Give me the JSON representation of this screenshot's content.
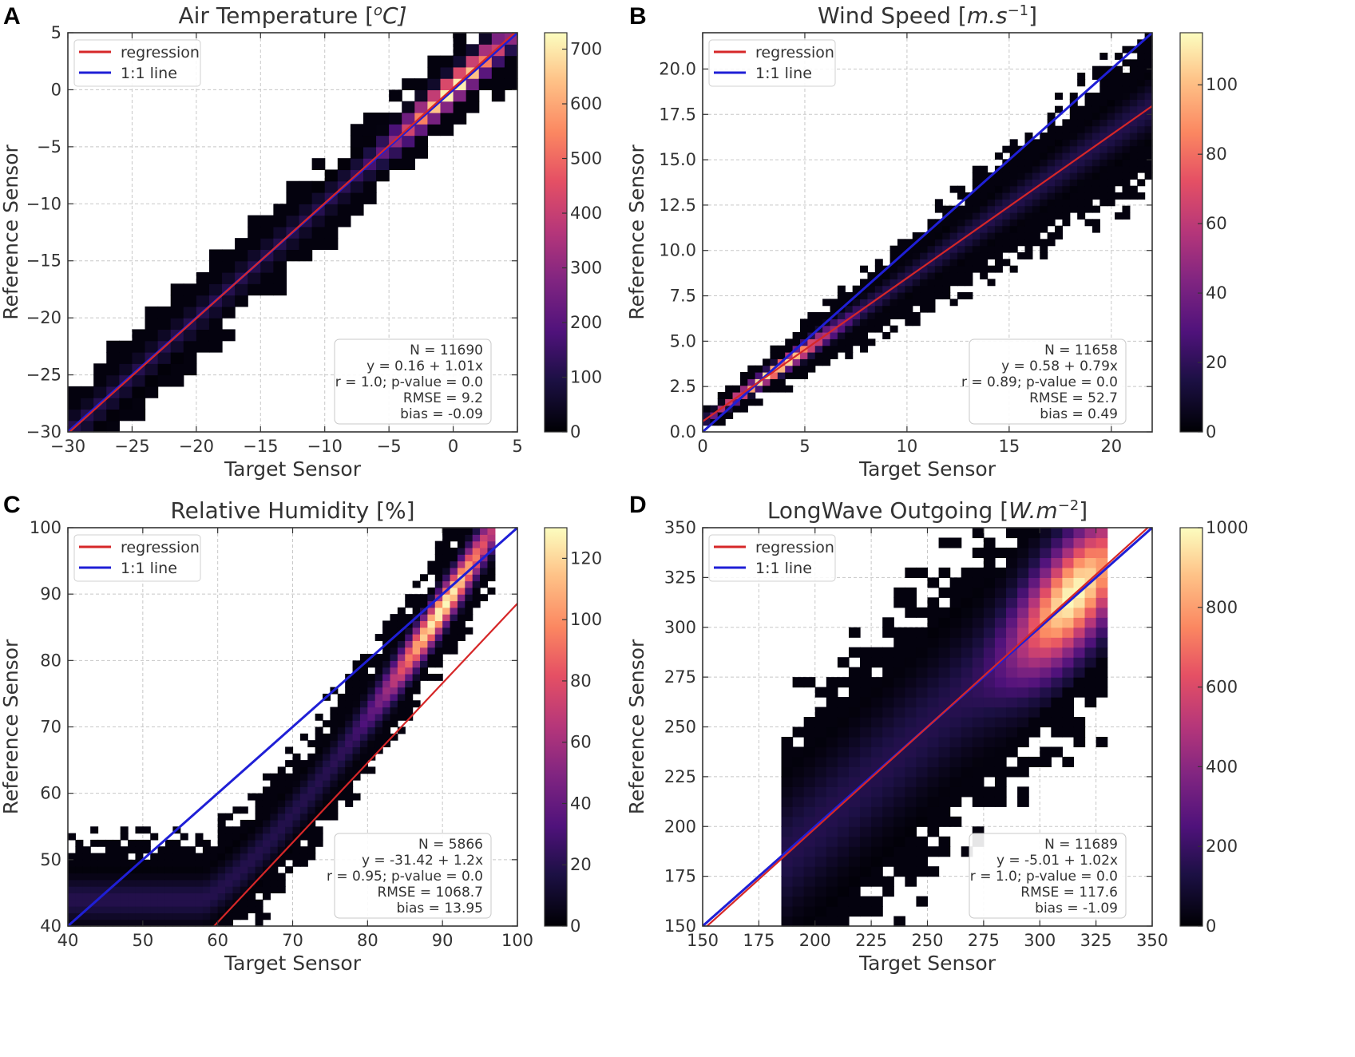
{
  "chart_data": [
    {
      "panel_label": "A",
      "type": "heatmap",
      "title": "Air Temperature [°C]",
      "title_parts": {
        "main": "Air Temperature [",
        "sup": "o",
        "unit": "C]"
      },
      "xlabel": "Target Sensor",
      "ylabel": "Reference Sensor",
      "xlim": [
        -30,
        5
      ],
      "ylim": [
        -30,
        5
      ],
      "xticks": [
        -30,
        -25,
        -20,
        -15,
        -10,
        -5,
        0,
        5
      ],
      "yticks": [
        -30,
        -25,
        -20,
        -15,
        -10,
        -5,
        0,
        5
      ],
      "xtick_labels": [
        "−30",
        "−25",
        "−20",
        "−15",
        "−10",
        "−5",
        "0",
        "5"
      ],
      "ytick_labels": [
        "−30",
        "−25",
        "−20",
        "−15",
        "−10",
        "−5",
        "0",
        "5"
      ],
      "colorbar": {
        "min": 0,
        "max": 730,
        "ticks": [
          0,
          100,
          200,
          300,
          400,
          500,
          600,
          700
        ],
        "tick_labels": [
          "0",
          "100",
          "200",
          "300",
          "400",
          "500",
          "600",
          "700"
        ]
      },
      "legend": {
        "position": "top-left",
        "entries": [
          {
            "label": "regression",
            "color": "#d62728"
          },
          {
            "label": "1:1 line",
            "color": "#1f1fd6"
          }
        ]
      },
      "regression": {
        "intercept": 0.16,
        "slope": 1.01
      },
      "stats": [
        "N = 11690",
        "y = 0.16 + 1.01x",
        "r = 1.0; p-value = 0.0",
        "RMSE = 9.2",
        "bias = -0.09"
      ],
      "density": {
        "bins": 35,
        "spread": 1.3,
        "outer_scale": 3.0,
        "peak_x": 0.0,
        "rel": "linear"
      }
    },
    {
      "panel_label": "B",
      "type": "heatmap",
      "title": "Wind Speed [m.s⁻¹]",
      "title_parts": {
        "main": "Wind Speed [",
        "unit_italic": "m.s",
        "sup": "−1",
        "end": "]"
      },
      "xlabel": "Target Sensor",
      "ylabel": "Reference Sensor",
      "xlim": [
        0,
        22
      ],
      "ylim": [
        0,
        22
      ],
      "xticks": [
        0,
        5,
        10,
        15,
        20
      ],
      "yticks": [
        0.0,
        2.5,
        5.0,
        7.5,
        10.0,
        12.5,
        15.0,
        17.5,
        20.0
      ],
      "xtick_labels": [
        "0",
        "5",
        "10",
        "15",
        "20"
      ],
      "ytick_labels": [
        "0.0",
        "2.5",
        "5.0",
        "7.5",
        "10.0",
        "12.5",
        "15.0",
        "17.5",
        "20.0"
      ],
      "colorbar": {
        "min": 0,
        "max": 115,
        "ticks": [
          0,
          20,
          40,
          60,
          80,
          100
        ],
        "tick_labels": [
          "0",
          "20",
          "40",
          "60",
          "80",
          "100"
        ]
      },
      "legend": {
        "position": "top-left",
        "entries": [
          {
            "label": "regression",
            "color": "#d62728"
          },
          {
            "label": "1:1 line",
            "color": "#1f1fd6"
          }
        ]
      },
      "regression": {
        "intercept": 0.58,
        "slope": 0.79
      },
      "stats": [
        "N = 11658",
        "y = 0.58 + 0.79x",
        "r = 0.89; p-value = 0.0",
        "RMSE = 52.7",
        "bias = 0.49"
      ],
      "density": {
        "bins": 60,
        "spread": 1.1,
        "outer_scale": 3.5,
        "peak_x": 3.5,
        "rel": "linear"
      }
    },
    {
      "panel_label": "C",
      "type": "heatmap",
      "title": "Relative Humidity [%]",
      "title_parts": {
        "main": "Relative Humidity [%]"
      },
      "xlabel": "Target Sensor",
      "ylabel": "Reference Sensor",
      "xlim": [
        40,
        100
      ],
      "ylim": [
        40,
        100
      ],
      "xticks": [
        40,
        50,
        60,
        70,
        80,
        90,
        100
      ],
      "yticks": [
        40,
        50,
        60,
        70,
        80,
        90,
        100
      ],
      "xtick_labels": [
        "40",
        "50",
        "60",
        "70",
        "80",
        "90",
        "100"
      ],
      "ytick_labels": [
        "40",
        "50",
        "60",
        "70",
        "80",
        "90",
        "100"
      ],
      "colorbar": {
        "min": 0,
        "max": 130,
        "ticks": [
          0,
          20,
          40,
          60,
          80,
          100,
          120
        ],
        "tick_labels": [
          "0",
          "20",
          "40",
          "60",
          "80",
          "100",
          "120"
        ]
      },
      "legend": {
        "position": "top-left",
        "entries": [
          {
            "label": "regression",
            "color": "#d62728"
          },
          {
            "label": "1:1 line",
            "color": "#1f1fd6"
          }
        ]
      },
      "regression": {
        "intercept": -31.42,
        "slope": 1.2
      },
      "stats": [
        "N = 5866",
        "y = -31.42 + 1.2x",
        "r = 0.95; p-value = 0.0",
        "RMSE = 1068.7",
        "bias = 13.95"
      ],
      "density": {
        "bins": 60,
        "spread": 2.0,
        "outer_scale": 3.0,
        "peak_x": 90.0,
        "rel": "curve",
        "xmax": 96.5
      }
    },
    {
      "panel_label": "D",
      "type": "heatmap",
      "title": "LongWave Outgoing [W.m⁻²]",
      "title_parts": {
        "main": "LongWave Outgoing [",
        "unit_italic": "W.m",
        "sup": "−2",
        "end": "]"
      },
      "xlabel": "Target Sensor",
      "ylabel": "Reference Sensor",
      "xlim": [
        150,
        350
      ],
      "ylim": [
        150,
        350
      ],
      "xticks": [
        150,
        175,
        200,
        225,
        250,
        275,
        300,
        325,
        350
      ],
      "yticks": [
        150,
        175,
        200,
        225,
        250,
        275,
        300,
        325,
        350
      ],
      "xtick_labels": [
        "150",
        "175",
        "200",
        "225",
        "250",
        "275",
        "300",
        "325",
        "350"
      ],
      "ytick_labels": [
        "150",
        "175",
        "200",
        "225",
        "250",
        "275",
        "300",
        "325",
        "350"
      ],
      "colorbar": {
        "min": 0,
        "max": 1000,
        "ticks": [
          0,
          200,
          400,
          600,
          800,
          1000
        ],
        "tick_labels": [
          "0",
          "200",
          "400",
          "600",
          "800",
          "1000"
        ]
      },
      "legend": {
        "position": "top-left",
        "entries": [
          {
            "label": "regression",
            "color": "#d62728"
          },
          {
            "label": "1:1 line",
            "color": "#1f1fd6"
          }
        ]
      },
      "regression": {
        "intercept": -5.01,
        "slope": 1.02
      },
      "stats": [
        "N = 11689",
        "y = -5.01 + 1.02x",
        "r = 1.0; p-value = 0.0",
        "RMSE = 117.6",
        "bias = -1.09"
      ],
      "density": {
        "bins": 40,
        "spread": 6.0,
        "outer_scale": 2.5,
        "peak_x": 315.0,
        "rel": "linear",
        "xmin": 185,
        "xmax": 328
      }
    }
  ]
}
